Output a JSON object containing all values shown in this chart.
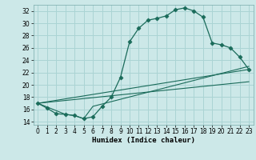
{
  "xlabel": "Humidex (Indice chaleur)",
  "background_color": "#cce8e8",
  "grid_color": "#aad4d4",
  "line_color": "#1a6b5a",
  "xlim": [
    -0.5,
    23.5
  ],
  "ylim": [
    13.5,
    33.0
  ],
  "yticks": [
    14,
    16,
    18,
    20,
    22,
    24,
    26,
    28,
    30,
    32
  ],
  "xticks": [
    0,
    1,
    2,
    3,
    4,
    5,
    6,
    7,
    8,
    9,
    10,
    11,
    12,
    13,
    14,
    15,
    16,
    17,
    18,
    19,
    20,
    21,
    22,
    23
  ],
  "series1_x": [
    0,
    1,
    2,
    3,
    4,
    5,
    6,
    7,
    8,
    9,
    10,
    11,
    12,
    13,
    14,
    15,
    16,
    17,
    18,
    19,
    20,
    21,
    22,
    23
  ],
  "series1_y": [
    17.0,
    16.2,
    15.3,
    15.2,
    15.0,
    14.5,
    14.8,
    16.5,
    18.0,
    21.2,
    27.0,
    29.2,
    30.5,
    30.8,
    31.2,
    32.2,
    32.5,
    32.0,
    31.0,
    26.8,
    26.5,
    26.0,
    24.5,
    22.5
  ],
  "series2_x": [
    0,
    3,
    4,
    5,
    6,
    23
  ],
  "series2_y": [
    17.0,
    15.2,
    15.0,
    14.5,
    16.5,
    23.0
  ],
  "series3_x": [
    0,
    23
  ],
  "series3_y": [
    17.0,
    22.5
  ],
  "series4_x": [
    0,
    23
  ],
  "series4_y": [
    17.0,
    20.5
  ]
}
